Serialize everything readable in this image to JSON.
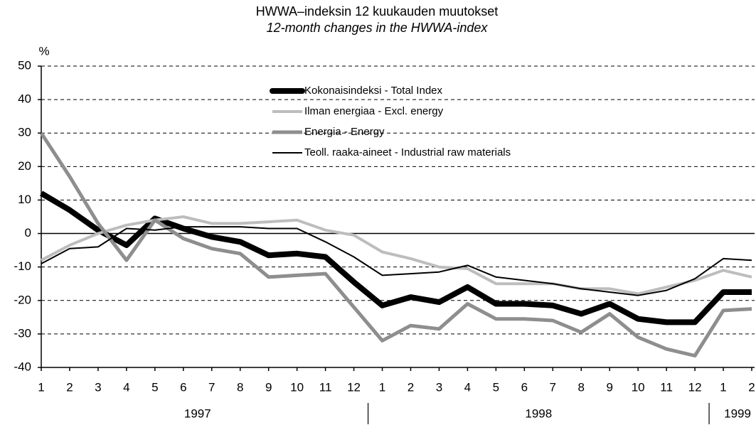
{
  "chart_data": {
    "type": "line",
    "title": "HWWA–indeksin 12 kuukauden muutokset",
    "subtitle": "12-month changes in the HWWA-index",
    "y_label": "%",
    "categories": [
      "1",
      "2",
      "3",
      "4",
      "5",
      "6",
      "7",
      "8",
      "9",
      "10",
      "11",
      "12",
      "1",
      "2",
      "3",
      "4",
      "5",
      "6",
      "7",
      "8",
      "9",
      "10",
      "11",
      "12",
      "1",
      "2"
    ],
    "years": [
      "1997",
      "1998",
      "1999"
    ],
    "ylim": [
      -40,
      50
    ],
    "yticks": [
      -40,
      -30,
      -20,
      -10,
      0,
      10,
      20,
      30,
      40,
      50
    ],
    "grid": true,
    "series": [
      {
        "name": "Kokonaisindeksi - Total Index",
        "color": "#000000",
        "values": [
          12,
          7,
          1,
          -3.5,
          4.5,
          1.5,
          -1,
          -2.5,
          -6.5,
          -6,
          -7,
          -14.5,
          -21.5,
          -19,
          -20.5,
          -16,
          -21,
          -21,
          -21.5,
          -24,
          -21,
          -25.5,
          -26.5,
          -26.5,
          -17.5,
          -17.5
        ]
      },
      {
        "name": "Ilman energiaa - Excl. energy",
        "color": "#bdbdbd",
        "values": [
          -8,
          -3.5,
          0,
          2.5,
          4,
          5,
          3,
          3,
          3.5,
          4,
          1,
          -0.5,
          -5.5,
          -7.5,
          -10,
          -10.5,
          -15,
          -15,
          -15,
          -16.5,
          -16.5,
          -18,
          -16,
          -14,
          -11,
          -13
        ]
      },
      {
        "name": "Energia - Energy",
        "color": "#8e8e8e",
        "values": [
          30,
          17,
          3,
          -8,
          4,
          -1.5,
          -4.5,
          -6,
          -13,
          -12.5,
          -12,
          -22,
          -32,
          -27.5,
          -28.5,
          -21,
          -25.5,
          -25.5,
          -26,
          -29.5,
          -24,
          -31,
          -34.5,
          -36.5,
          -23,
          -22.5
        ]
      },
      {
        "name": "Teoll. raaka-aineet - Industrial raw materials",
        "color": "#000000",
        "values": [
          -9,
          -4.5,
          -4,
          1.5,
          1,
          2,
          2,
          2,
          1.5,
          1.5,
          -2.5,
          -7,
          -12.5,
          -12,
          -11.5,
          -9.5,
          -13,
          -14,
          -15,
          -16.5,
          -17.5,
          -18.5,
          -17,
          -13.5,
          -7.5,
          -8
        ]
      }
    ]
  }
}
